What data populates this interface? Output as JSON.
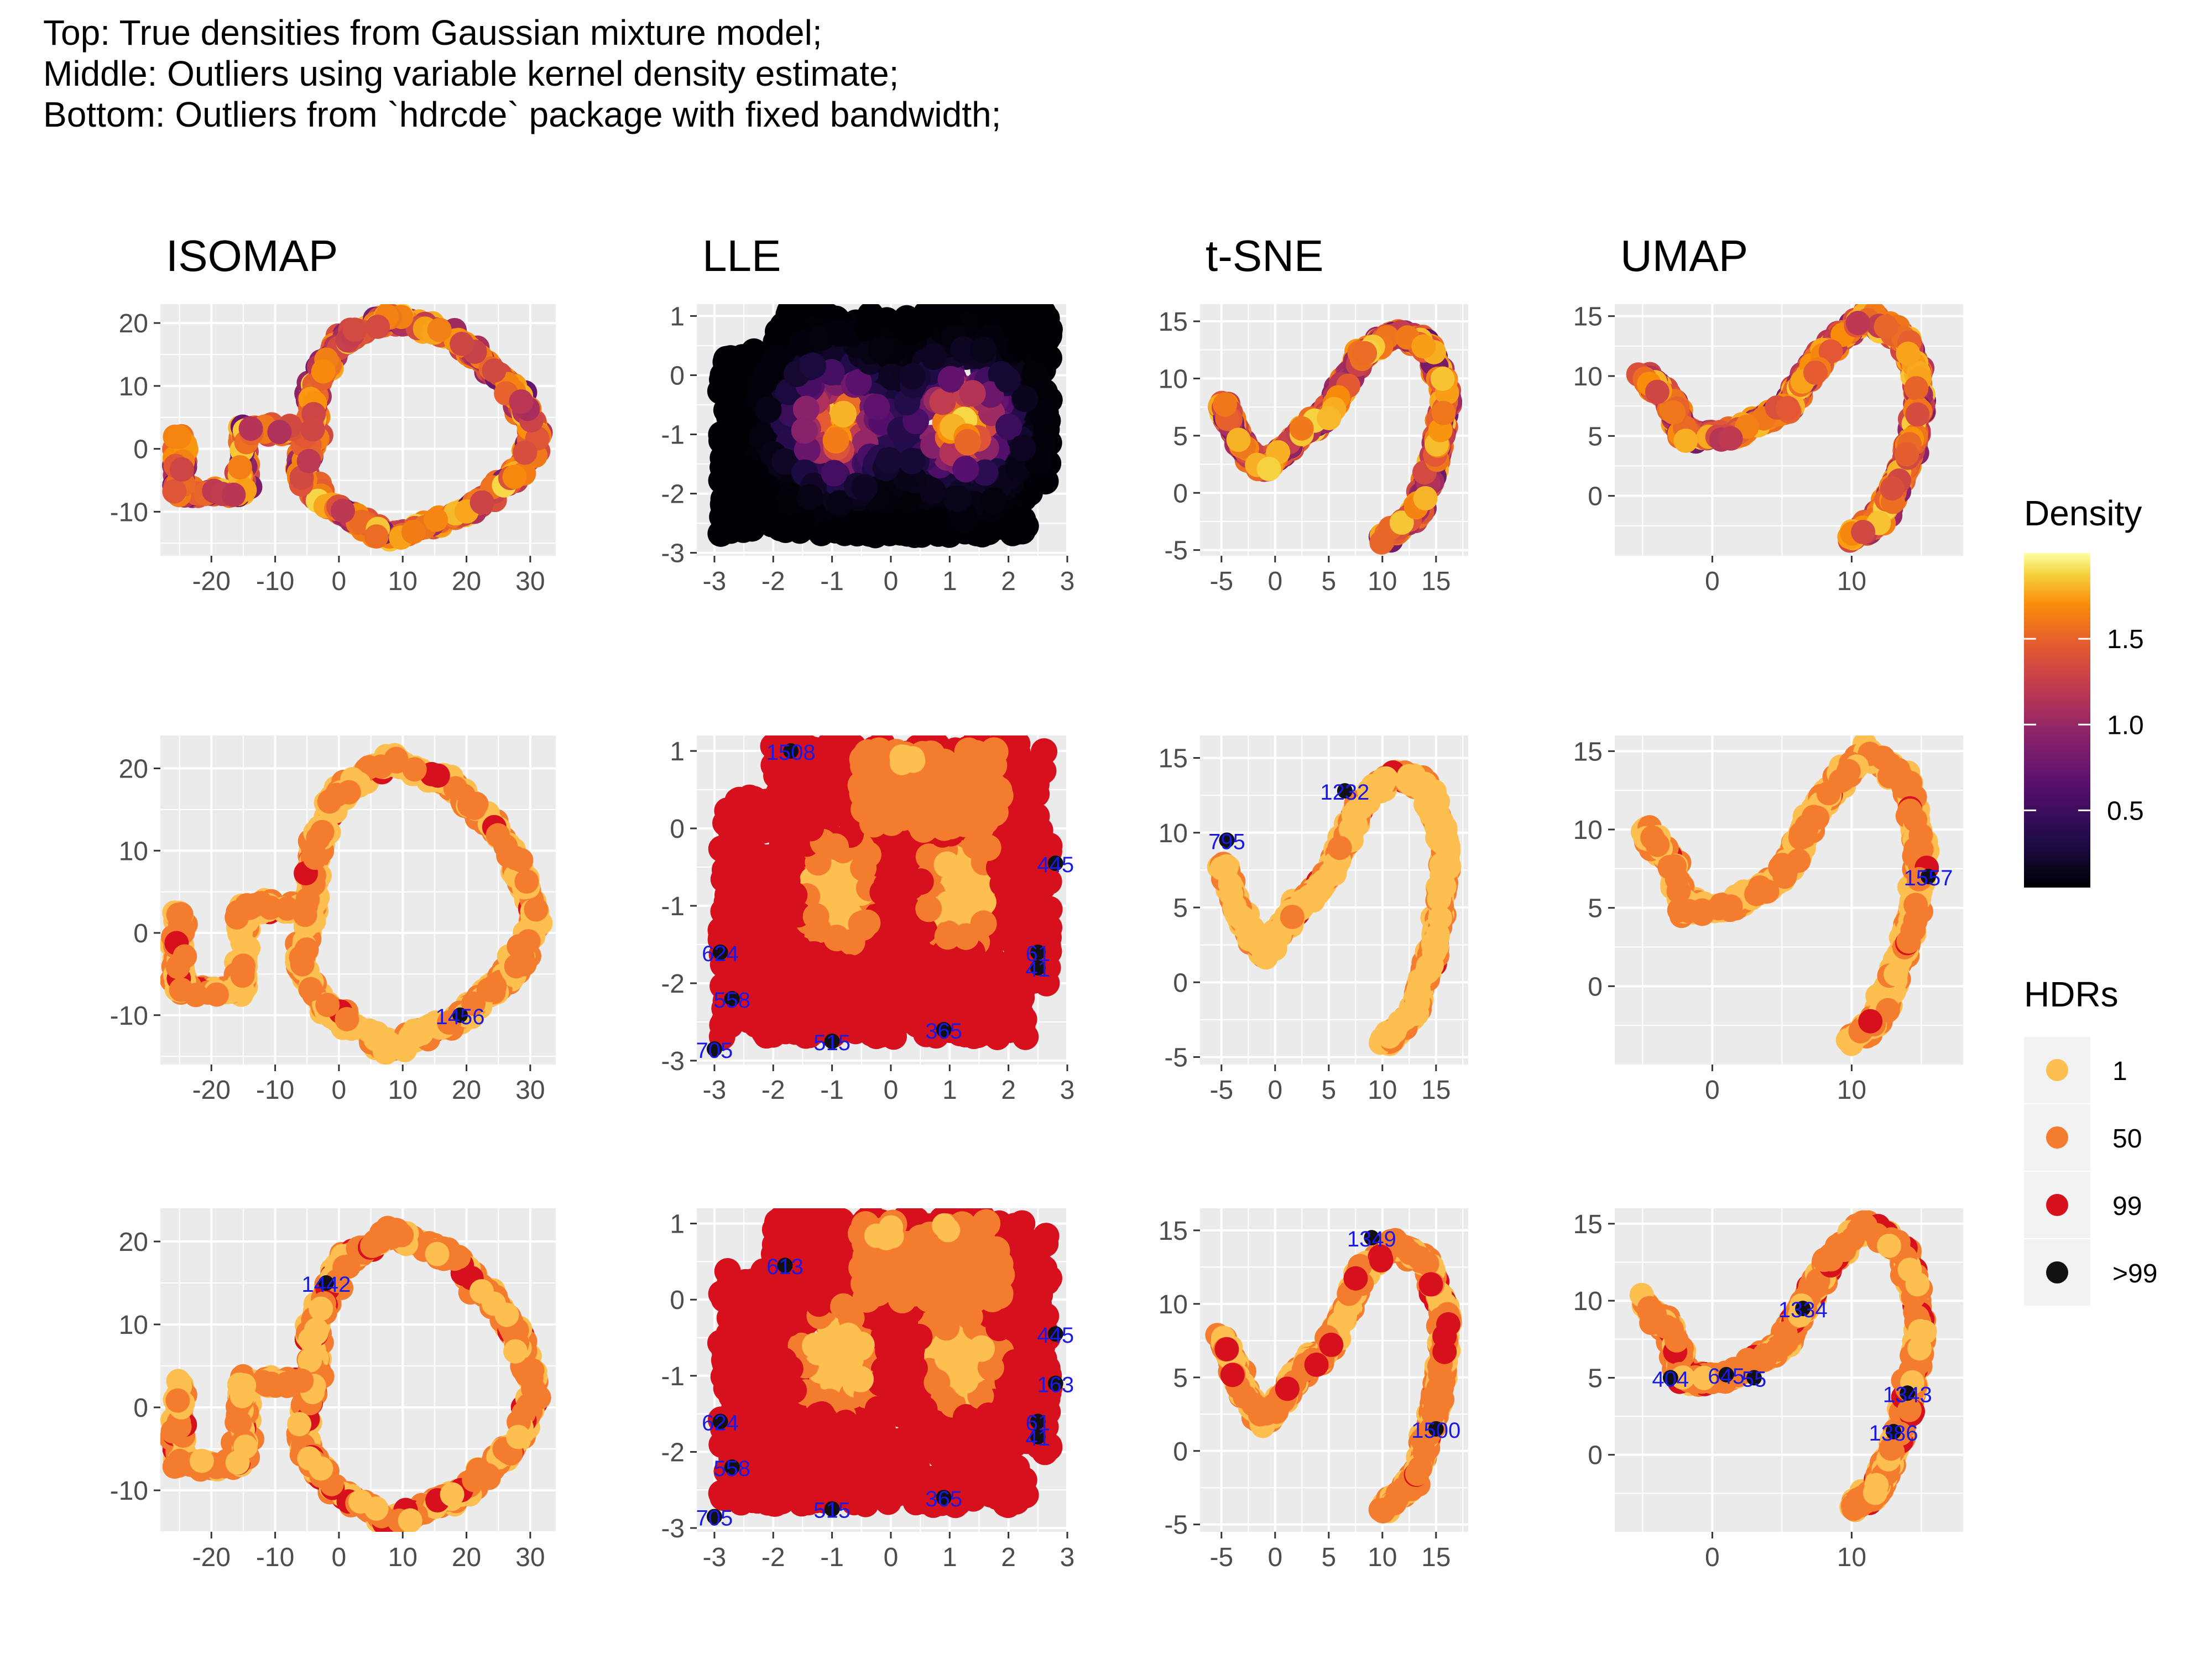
{
  "caption": {
    "line1": "Top: True densities from Gaussian mixture model;",
    "line2": "Middle: Outliers using variable kernel density estimate;",
    "line3": "Bottom: Outliers from `hdrcde` package with fixed bandwidth;"
  },
  "columns": [
    "ISOMAP",
    "LLE",
    "t-SNE",
    "UMAP"
  ],
  "rows": [
    "top",
    "middle",
    "bottom"
  ],
  "legend": {
    "density": {
      "title": "Density",
      "ticks": [
        "1.5",
        "1.0",
        "0.5"
      ],
      "tick_values": [
        1.5,
        1.0,
        0.5
      ],
      "range": [
        0.05,
        2.0
      ]
    },
    "hdr": {
      "title": "HDRs",
      "items": [
        {
          "label": "1",
          "color": "#fdbf4f"
        },
        {
          "label": "50",
          "color": "#f47c2e"
        },
        {
          "label": "99",
          "color": "#d7101d"
        },
        {
          "label": ">99",
          "color": "#111111"
        }
      ]
    }
  },
  "colors": {
    "panel_bg": "#ebebeb",
    "grid": "#ffffff",
    "outlier_label": "#1a1ae6",
    "hdr1": "#fdbf4f",
    "hdr50": "#f47c2e",
    "hdr99": "#d7101d",
    "hdr_out": "#111111"
  },
  "chart_data": [
    {
      "id": "isomap-top",
      "type": "scatter",
      "title": "ISOMAP",
      "row": "top",
      "coloring": "density",
      "xlim": [
        -28,
        34
      ],
      "ylim": [
        -17,
        23
      ],
      "x_ticks": [
        -20,
        -10,
        0,
        10,
        20,
        30
      ],
      "y_ticks": [
        -10,
        0,
        10,
        20
      ],
      "shape": [
        [
          -25,
          3
        ],
        [
          -25,
          -7
        ],
        [
          -15,
          -7
        ],
        [
          -15,
          3
        ],
        [
          -4,
          3
        ],
        [
          -4,
          10
        ],
        [
          0,
          17
        ],
        [
          8,
          21
        ],
        [
          18,
          18
        ],
        [
          27,
          10
        ],
        [
          31,
          2
        ],
        [
          28,
          -4
        ],
        [
          20,
          -10
        ],
        [
          8,
          -14
        ],
        [
          -2,
          -9
        ],
        [
          -6,
          -4
        ],
        [
          -4,
          3
        ]
      ],
      "labels": []
    },
    {
      "id": "lle-top",
      "type": "scatter",
      "title": "LLE",
      "row": "top",
      "coloring": "density",
      "xlim": [
        -3.3,
        3.0
      ],
      "ylim": [
        -3.05,
        1.2
      ],
      "x_ticks": [
        -3,
        -2,
        -1,
        0,
        1,
        2,
        3
      ],
      "y_ticks": [
        -3,
        -2,
        -1,
        0,
        1
      ],
      "shape": [],
      "labels": []
    },
    {
      "id": "tsne-top",
      "type": "scatter",
      "title": "t-SNE",
      "row": "top",
      "coloring": "density",
      "xlim": [
        -7,
        18
      ],
      "ylim": [
        -5.5,
        16.5
      ],
      "x_ticks": [
        -5,
        0,
        5,
        10,
        15
      ],
      "y_ticks": [
        -5,
        0,
        5,
        10,
        15
      ],
      "shape": [
        [
          -5,
          8
        ],
        [
          -3,
          4
        ],
        [
          -1,
          2
        ],
        [
          2,
          5
        ],
        [
          5,
          7
        ],
        [
          8,
          12
        ],
        [
          11,
          14
        ],
        [
          14,
          13
        ],
        [
          16,
          9
        ],
        [
          15,
          3
        ],
        [
          13,
          -2
        ],
        [
          10,
          -4
        ]
      ],
      "labels": []
    },
    {
      "id": "umap-top",
      "type": "scatter",
      "title": "UMAP",
      "row": "top",
      "coloring": "density",
      "xlim": [
        -7,
        18
      ],
      "ylim": [
        -5,
        16
      ],
      "x_ticks": [
        0,
        10
      ],
      "y_ticks": [
        0,
        5,
        10,
        15
      ],
      "shape": [
        [
          -5,
          10
        ],
        [
          -3,
          8
        ],
        [
          -2,
          5
        ],
        [
          1,
          5
        ],
        [
          3,
          6
        ],
        [
          5,
          7
        ],
        [
          8,
          12
        ],
        [
          11,
          15
        ],
        [
          14,
          13
        ],
        [
          15,
          8
        ],
        [
          14,
          3
        ],
        [
          12,
          -2
        ],
        [
          10,
          -3.5
        ]
      ],
      "labels": []
    },
    {
      "id": "isomap-middle",
      "type": "scatter",
      "title": "",
      "row": "middle",
      "coloring": "hdr",
      "xlim": [
        -28,
        34
      ],
      "ylim": [
        -16,
        24
      ],
      "x_ticks": [
        -20,
        -10,
        0,
        10,
        20,
        30
      ],
      "y_ticks": [
        -10,
        0,
        10,
        20
      ],
      "shape": [
        [
          -25,
          3
        ],
        [
          -25,
          -7
        ],
        [
          -15,
          -7
        ],
        [
          -15,
          3
        ],
        [
          -4,
          3
        ],
        [
          -4,
          10
        ],
        [
          0,
          17
        ],
        [
          8,
          21
        ],
        [
          18,
          18
        ],
        [
          27,
          10
        ],
        [
          31,
          2
        ],
        [
          28,
          -4
        ],
        [
          20,
          -10
        ],
        [
          8,
          -14
        ],
        [
          -2,
          -9
        ],
        [
          -6,
          -4
        ],
        [
          -4,
          3
        ]
      ],
      "labels": [
        {
          "text": "1456",
          "x": 19,
          "y": -10
        }
      ]
    },
    {
      "id": "lle-middle",
      "type": "scatter",
      "title": "",
      "row": "middle",
      "coloring": "hdr",
      "xlim": [
        -3.3,
        3.0
      ],
      "ylim": [
        -3.05,
        1.2
      ],
      "x_ticks": [
        -3,
        -2,
        -1,
        0,
        1,
        2,
        3
      ],
      "y_ticks": [
        -3,
        -2,
        -1,
        0,
        1
      ],
      "shape": [],
      "labels": [
        {
          "text": "1508",
          "x": -1.7,
          "y": 1.0
        },
        {
          "text": "445",
          "x": 2.8,
          "y": -0.45
        },
        {
          "text": "624",
          "x": -2.9,
          "y": -1.6
        },
        {
          "text": "61",
          "x": 2.5,
          "y": -1.6
        },
        {
          "text": "41",
          "x": 2.5,
          "y": -1.8
        },
        {
          "text": "558",
          "x": -2.7,
          "y": -2.2
        },
        {
          "text": "705",
          "x": -3.0,
          "y": -2.85
        },
        {
          "text": "515",
          "x": -1.0,
          "y": -2.75
        },
        {
          "text": "365",
          "x": 0.9,
          "y": -2.6
        }
      ]
    },
    {
      "id": "tsne-middle",
      "type": "scatter",
      "title": "",
      "row": "middle",
      "coloring": "hdr",
      "xlim": [
        -7,
        18
      ],
      "ylim": [
        -5.5,
        16.5
      ],
      "x_ticks": [
        -5,
        0,
        5,
        10,
        15
      ],
      "y_ticks": [
        -5,
        0,
        5,
        10,
        15
      ],
      "shape": [
        [
          -5,
          8
        ],
        [
          -3,
          4
        ],
        [
          -1,
          2
        ],
        [
          2,
          5
        ],
        [
          5,
          7
        ],
        [
          8,
          12
        ],
        [
          11,
          14
        ],
        [
          14,
          13
        ],
        [
          16,
          9
        ],
        [
          15,
          3
        ],
        [
          13,
          -2
        ],
        [
          10,
          -4
        ]
      ],
      "labels": [
        {
          "text": "795",
          "x": -4.5,
          "y": 9.5
        },
        {
          "text": "1232",
          "x": 6.5,
          "y": 12.8
        }
      ]
    },
    {
      "id": "umap-middle",
      "type": "scatter",
      "title": "",
      "row": "middle",
      "coloring": "hdr",
      "xlim": [
        -7,
        18
      ],
      "ylim": [
        -5,
        16
      ],
      "x_ticks": [
        0,
        10
      ],
      "y_ticks": [
        0,
        5,
        10,
        15
      ],
      "shape": [
        [
          -5,
          10
        ],
        [
          -3,
          8
        ],
        [
          -2,
          5
        ],
        [
          1,
          5
        ],
        [
          3,
          6
        ],
        [
          5,
          7
        ],
        [
          8,
          12
        ],
        [
          11,
          15
        ],
        [
          14,
          13
        ],
        [
          15,
          8
        ],
        [
          14,
          3
        ],
        [
          12,
          -2
        ],
        [
          10,
          -3.5
        ]
      ],
      "labels": [
        {
          "text": "1557",
          "x": 15.5,
          "y": 7.0
        }
      ]
    },
    {
      "id": "isomap-bottom",
      "type": "scatter",
      "title": "",
      "row": "bottom",
      "coloring": "hdr",
      "xlim": [
        -28,
        34
      ],
      "ylim": [
        -15,
        24
      ],
      "x_ticks": [
        -20,
        -10,
        0,
        10,
        20,
        30
      ],
      "y_ticks": [
        -10,
        0,
        10,
        20
      ],
      "shape": [
        [
          -25,
          3
        ],
        [
          -25,
          -7
        ],
        [
          -15,
          -7
        ],
        [
          -15,
          3
        ],
        [
          -4,
          3
        ],
        [
          -4,
          10
        ],
        [
          0,
          17
        ],
        [
          8,
          21
        ],
        [
          18,
          18
        ],
        [
          27,
          10
        ],
        [
          31,
          2
        ],
        [
          28,
          -4
        ],
        [
          20,
          -10
        ],
        [
          8,
          -14
        ],
        [
          -2,
          -9
        ],
        [
          -6,
          -4
        ],
        [
          -4,
          3
        ]
      ],
      "labels": [
        {
          "text": "1442",
          "x": -2,
          "y": 15
        }
      ]
    },
    {
      "id": "lle-bottom",
      "type": "scatter",
      "title": "",
      "row": "bottom",
      "coloring": "hdr",
      "xlim": [
        -3.3,
        3.0
      ],
      "ylim": [
        -3.05,
        1.2
      ],
      "x_ticks": [
        -3,
        -2,
        -1,
        0,
        1,
        2,
        3
      ],
      "y_ticks": [
        -3,
        -2,
        -1,
        0,
        1
      ],
      "shape": [],
      "labels": [
        {
          "text": "613",
          "x": -1.8,
          "y": 0.45
        },
        {
          "text": "445",
          "x": 2.8,
          "y": -0.45
        },
        {
          "text": "163",
          "x": 2.8,
          "y": -1.1
        },
        {
          "text": "624",
          "x": -2.9,
          "y": -1.6
        },
        {
          "text": "61",
          "x": 2.5,
          "y": -1.6
        },
        {
          "text": "41",
          "x": 2.5,
          "y": -1.8
        },
        {
          "text": "558",
          "x": -2.7,
          "y": -2.2
        },
        {
          "text": "705",
          "x": -3.0,
          "y": -2.85
        },
        {
          "text": "515",
          "x": -1.0,
          "y": -2.75
        },
        {
          "text": "365",
          "x": 0.9,
          "y": -2.6
        }
      ]
    },
    {
      "id": "tsne-bottom",
      "type": "scatter",
      "title": "",
      "row": "bottom",
      "coloring": "hdr",
      "xlim": [
        -7,
        18
      ],
      "ylim": [
        -5.5,
        16.5
      ],
      "x_ticks": [
        -5,
        0,
        5,
        10,
        15
      ],
      "y_ticks": [
        -5,
        0,
        5,
        10,
        15
      ],
      "shape": [
        [
          -5,
          8
        ],
        [
          -3,
          4
        ],
        [
          -1,
          2
        ],
        [
          2,
          5
        ],
        [
          5,
          7
        ],
        [
          8,
          12
        ],
        [
          11,
          14
        ],
        [
          14,
          13
        ],
        [
          16,
          9
        ],
        [
          15,
          3
        ],
        [
          13,
          -2
        ],
        [
          10,
          -4
        ]
      ],
      "labels": [
        {
          "text": "1349",
          "x": 9,
          "y": 14.5
        },
        {
          "text": "1500",
          "x": 15,
          "y": 1.5
        }
      ]
    },
    {
      "id": "umap-bottom",
      "type": "scatter",
      "title": "",
      "row": "bottom",
      "coloring": "hdr",
      "xlim": [
        -7,
        18
      ],
      "ylim": [
        -5,
        16
      ],
      "x_ticks": [
        0,
        10
      ],
      "y_ticks": [
        0,
        5,
        10,
        15
      ],
      "shape": [
        [
          -5,
          10
        ],
        [
          -3,
          8
        ],
        [
          -2,
          5
        ],
        [
          1,
          5
        ],
        [
          3,
          6
        ],
        [
          5,
          7
        ],
        [
          8,
          12
        ],
        [
          11,
          15
        ],
        [
          14,
          13
        ],
        [
          15,
          8
        ],
        [
          14,
          3
        ],
        [
          12,
          -2
        ],
        [
          10,
          -3.5
        ]
      ],
      "labels": [
        {
          "text": "1334",
          "x": 6.5,
          "y": 9.5
        },
        {
          "text": "404",
          "x": -3,
          "y": 5
        },
        {
          "text": "645",
          "x": 1,
          "y": 5.2
        },
        {
          "text": "55",
          "x": 3,
          "y": 5
        },
        {
          "text": "1343",
          "x": 14,
          "y": 4
        },
        {
          "text": "1386",
          "x": 13,
          "y": 1.5
        }
      ]
    }
  ]
}
